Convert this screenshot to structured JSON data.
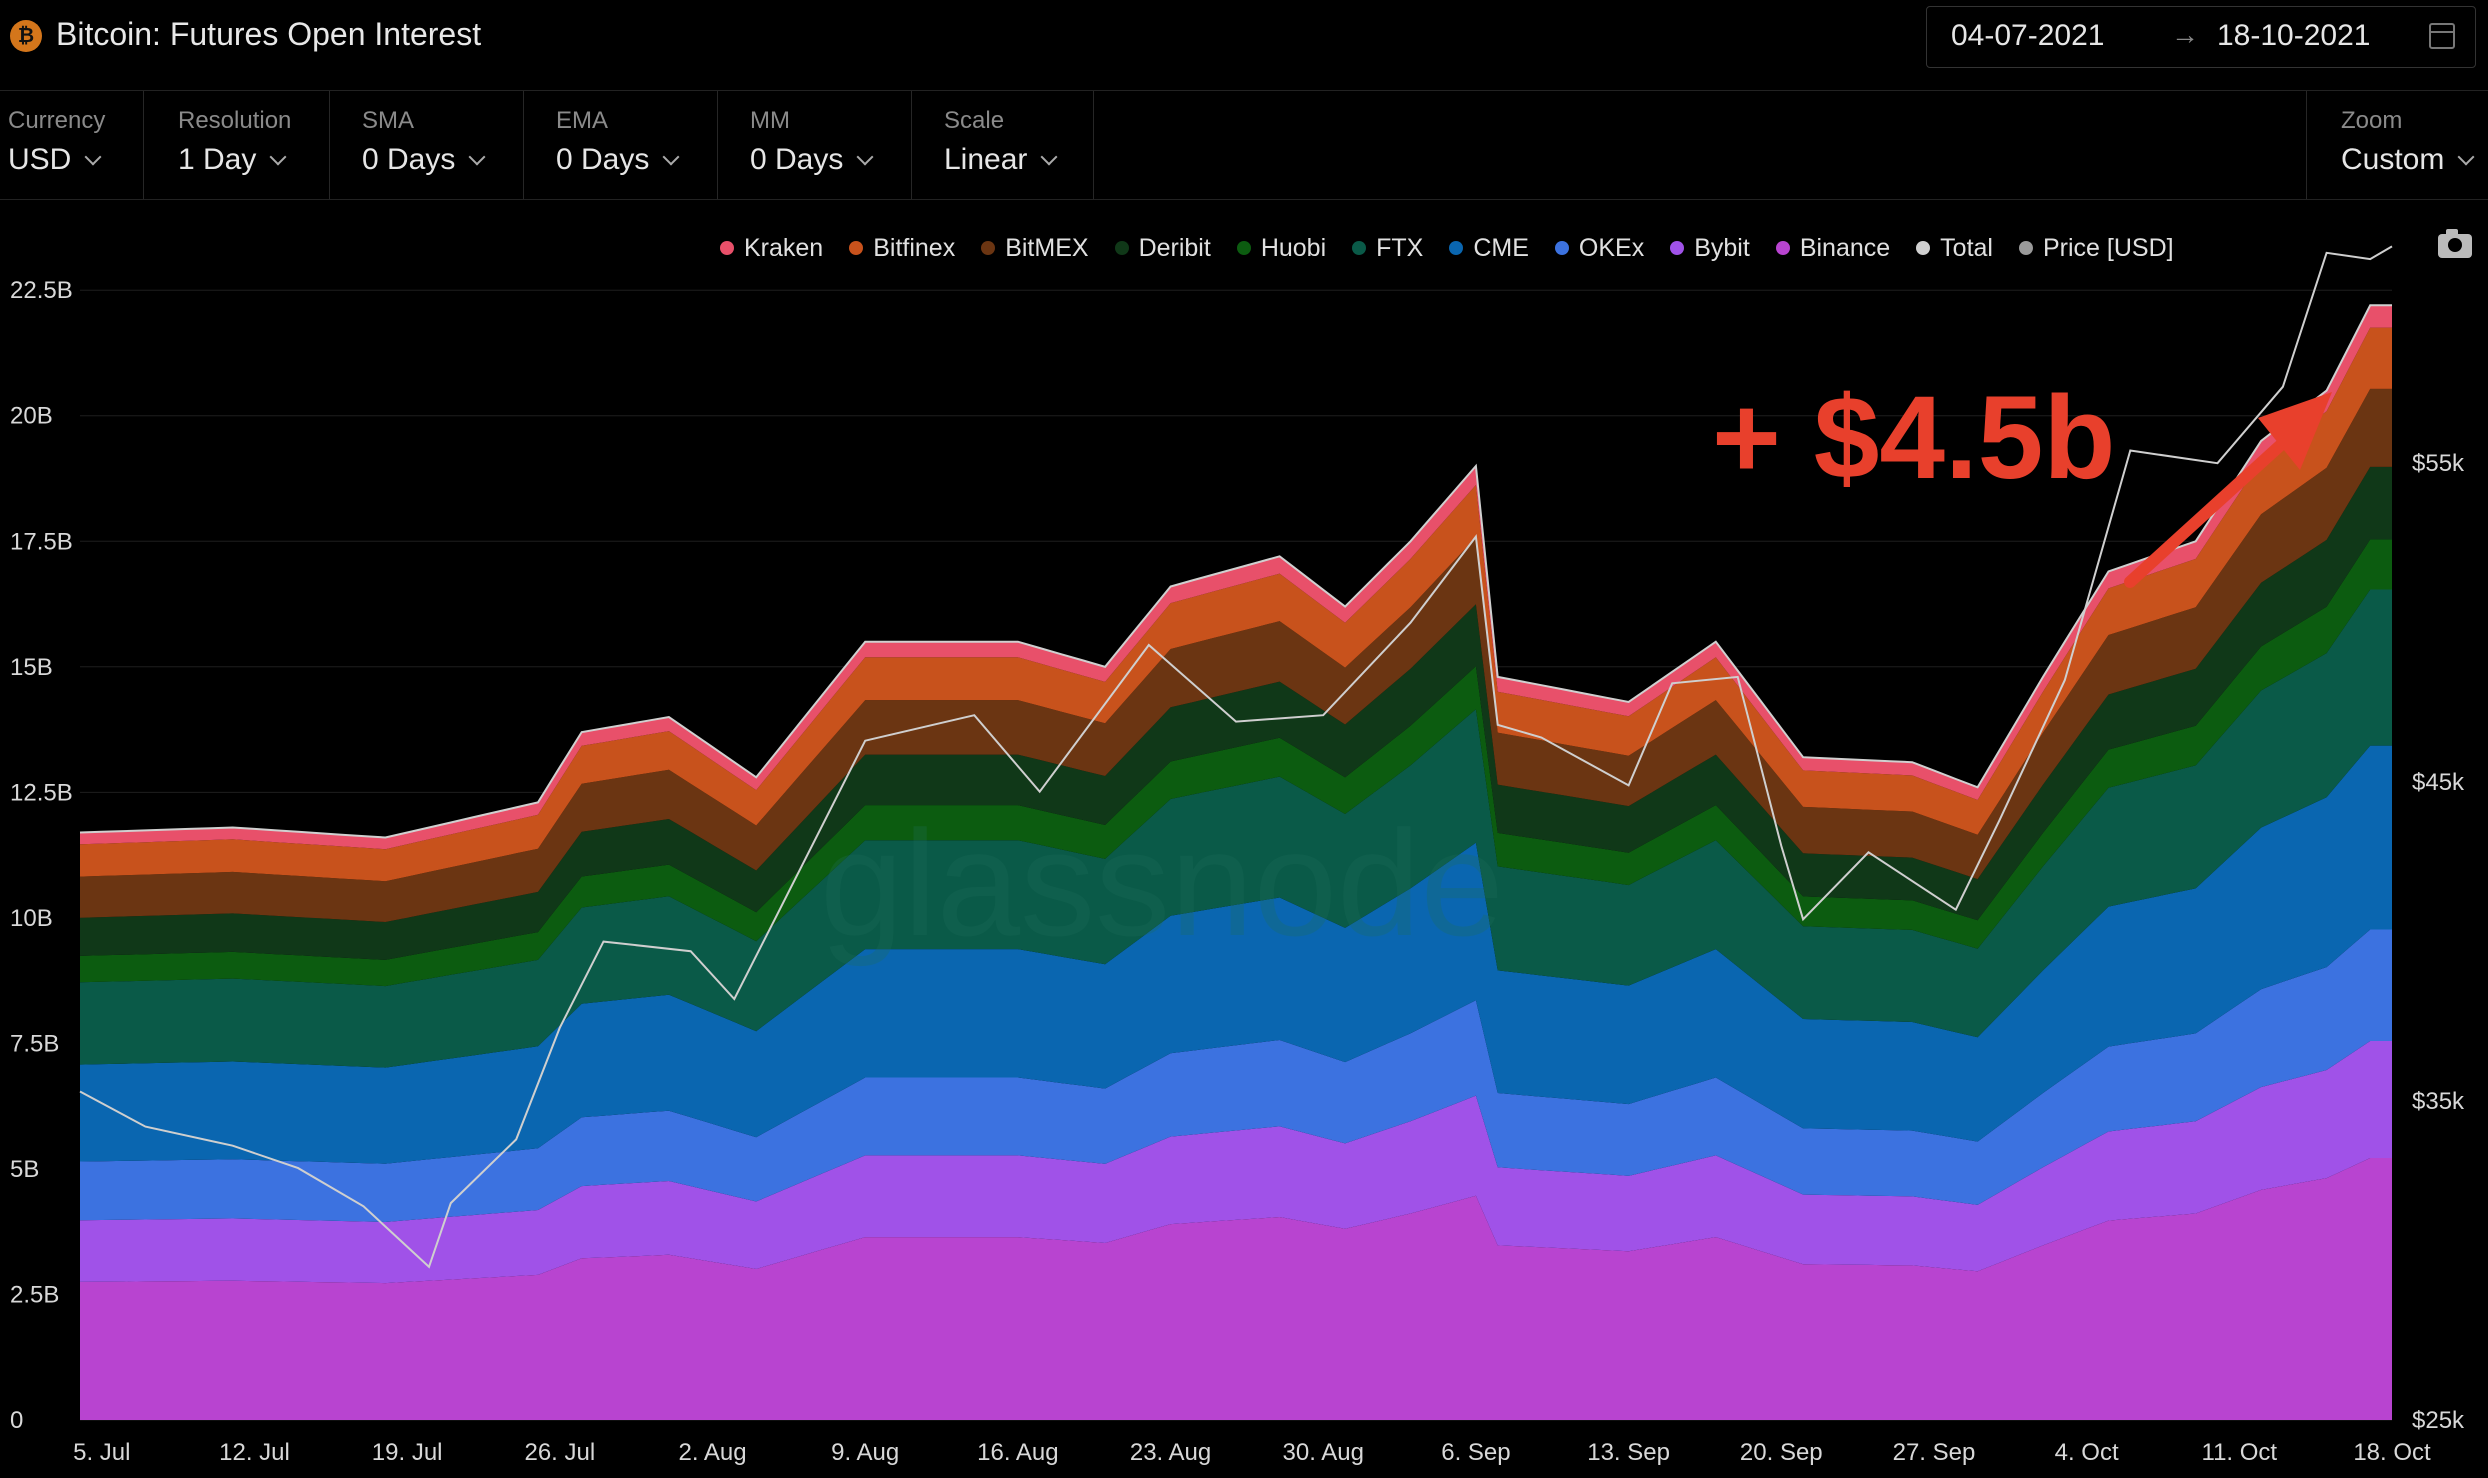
{
  "header": {
    "logo_glyph": "₿",
    "title": "Bitcoin: Futures Open Interest",
    "date_start": "04-07-2021",
    "date_arrow": "→",
    "date_end": "18-10-2021"
  },
  "controls": [
    {
      "key": "currency",
      "label": "Currency",
      "value": "USD"
    },
    {
      "key": "resolution",
      "label": "Resolution",
      "value": "1 Day"
    },
    {
      "key": "sma",
      "label": "SMA",
      "value": "0 Days"
    },
    {
      "key": "ema",
      "label": "EMA",
      "value": "0 Days"
    },
    {
      "key": "mm",
      "label": "MM",
      "value": "0 Days"
    },
    {
      "key": "scale",
      "label": "Scale",
      "value": "Linear"
    },
    {
      "key": "zoom",
      "label": "Zoom",
      "value": "Custom"
    }
  ],
  "legend": [
    {
      "name": "Kraken",
      "color": "#e8506a"
    },
    {
      "name": "Bitfinex",
      "color": "#c8521c"
    },
    {
      "name": "BitMEX",
      "color": "#6b3512"
    },
    {
      "name": "Deribit",
      "color": "#103818"
    },
    {
      "name": "Huobi",
      "color": "#0c5c10"
    },
    {
      "name": "FTX",
      "color": "#0a5a48"
    },
    {
      "name": "CME",
      "color": "#0a66b0"
    },
    {
      "name": "OKEx",
      "color": "#3c72e0"
    },
    {
      "name": "Bybit",
      "color": "#a052e8"
    },
    {
      "name": "Binance",
      "color": "#b844d0"
    },
    {
      "name": "Total",
      "color": "#d0d0d0"
    },
    {
      "name": "Price [USD]",
      "color": "#9a9a9a"
    }
  ],
  "watermark": "glassnode",
  "annotation": "+ $4.5b",
  "chart_data": {
    "type": "area",
    "stacked": true,
    "x_start": "2021-07-04",
    "x_end": "2021-10-18",
    "x_tick_labels": [
      "5. Jul",
      "12. Jul",
      "19. Jul",
      "26. Jul",
      "2. Aug",
      "9. Aug",
      "16. Aug",
      "23. Aug",
      "30. Aug",
      "6. Sep",
      "13. Sep",
      "20. Sep",
      "27. Sep",
      "4. Oct",
      "11. Oct",
      "18. Oct"
    ],
    "y_ticks": [
      0,
      2.5,
      5,
      7.5,
      10,
      12.5,
      15,
      17.5,
      20,
      22.5
    ],
    "y_tick_labels": [
      "0",
      "2.5B",
      "5B",
      "7.5B",
      "10B",
      "12.5B",
      "15B",
      "17.5B",
      "20B",
      "22.5B"
    ],
    "ylim": [
      0,
      23.5
    ],
    "y2_ticks": [
      25000,
      35000,
      45000,
      55000
    ],
    "y2_tick_labels": [
      "$25k",
      "$35k",
      "$45k",
      "$55k"
    ],
    "y2lim": [
      25000,
      62000
    ],
    "total_series": {
      "name": "Total",
      "points": [
        [
          "2021-07-04",
          11.7
        ],
        [
          "2021-07-11",
          11.8
        ],
        [
          "2021-07-18",
          11.6
        ],
        [
          "2021-07-25",
          12.3
        ],
        [
          "2021-07-27",
          13.7
        ],
        [
          "2021-07-31",
          14.0
        ],
        [
          "2021-08-04",
          12.8
        ],
        [
          "2021-08-09",
          15.5
        ],
        [
          "2021-08-16",
          15.5
        ],
        [
          "2021-08-20",
          15.0
        ],
        [
          "2021-08-23",
          16.6
        ],
        [
          "2021-08-28",
          17.2
        ],
        [
          "2021-08-31",
          16.2
        ],
        [
          "2021-09-03",
          17.5
        ],
        [
          "2021-09-06",
          19.0
        ],
        [
          "2021-09-07",
          14.8
        ],
        [
          "2021-09-13",
          14.3
        ],
        [
          "2021-09-17",
          15.5
        ],
        [
          "2021-09-21",
          13.2
        ],
        [
          "2021-09-26",
          13.1
        ],
        [
          "2021-09-29",
          12.6
        ],
        [
          "2021-10-02",
          14.8
        ],
        [
          "2021-10-05",
          16.9
        ],
        [
          "2021-10-09",
          17.5
        ],
        [
          "2021-10-12",
          19.5
        ],
        [
          "2021-10-15",
          20.5
        ],
        [
          "2021-10-17",
          22.2
        ],
        [
          "2021-10-18",
          22.2
        ]
      ]
    },
    "layer_shares": [
      {
        "name": "Binance",
        "share": 0.235
      },
      {
        "name": "Bybit",
        "share": 0.105
      },
      {
        "name": "OKEx",
        "share": 0.1
      },
      {
        "name": "CME",
        "share": 0.165
      },
      {
        "name": "FTX",
        "share": 0.14
      },
      {
        "name": "Huobi",
        "share": 0.045
      },
      {
        "name": "Deribit",
        "share": 0.065
      },
      {
        "name": "BitMEX",
        "share": 0.07
      },
      {
        "name": "Bitfinex",
        "share": 0.055
      },
      {
        "name": "Kraken",
        "share": 0.02
      }
    ],
    "price_series": {
      "name": "Price [USD]",
      "points": [
        [
          "2021-07-04",
          35300
        ],
        [
          "2021-07-07",
          34200
        ],
        [
          "2021-07-11",
          33600
        ],
        [
          "2021-07-14",
          32900
        ],
        [
          "2021-07-17",
          31700
        ],
        [
          "2021-07-20",
          29800
        ],
        [
          "2021-07-21",
          31800
        ],
        [
          "2021-07-24",
          33800
        ],
        [
          "2021-07-26",
          37300
        ],
        [
          "2021-07-28",
          40000
        ],
        [
          "2021-08-01",
          39700
        ],
        [
          "2021-08-03",
          38200
        ],
        [
          "2021-08-05",
          40900
        ],
        [
          "2021-08-09",
          46300
        ],
        [
          "2021-08-14",
          47100
        ],
        [
          "2021-08-17",
          44700
        ],
        [
          "2021-08-22",
          49300
        ],
        [
          "2021-08-26",
          46900
        ],
        [
          "2021-08-30",
          47100
        ],
        [
          "2021-09-03",
          50000
        ],
        [
          "2021-09-06",
          52700
        ],
        [
          "2021-09-07",
          46800
        ],
        [
          "2021-09-09",
          46400
        ],
        [
          "2021-09-13",
          44900
        ],
        [
          "2021-09-15",
          48100
        ],
        [
          "2021-09-18",
          48300
        ],
        [
          "2021-09-20",
          43000
        ],
        [
          "2021-09-21",
          40700
        ],
        [
          "2021-09-24",
          42800
        ],
        [
          "2021-09-28",
          41000
        ],
        [
          "2021-09-30",
          43800
        ],
        [
          "2021-10-03",
          48200
        ],
        [
          "2021-10-06",
          55400
        ],
        [
          "2021-10-10",
          55000
        ],
        [
          "2021-10-13",
          57400
        ],
        [
          "2021-10-15",
          61600
        ],
        [
          "2021-10-17",
          61400
        ],
        [
          "2021-10-18",
          61800
        ]
      ]
    }
  }
}
